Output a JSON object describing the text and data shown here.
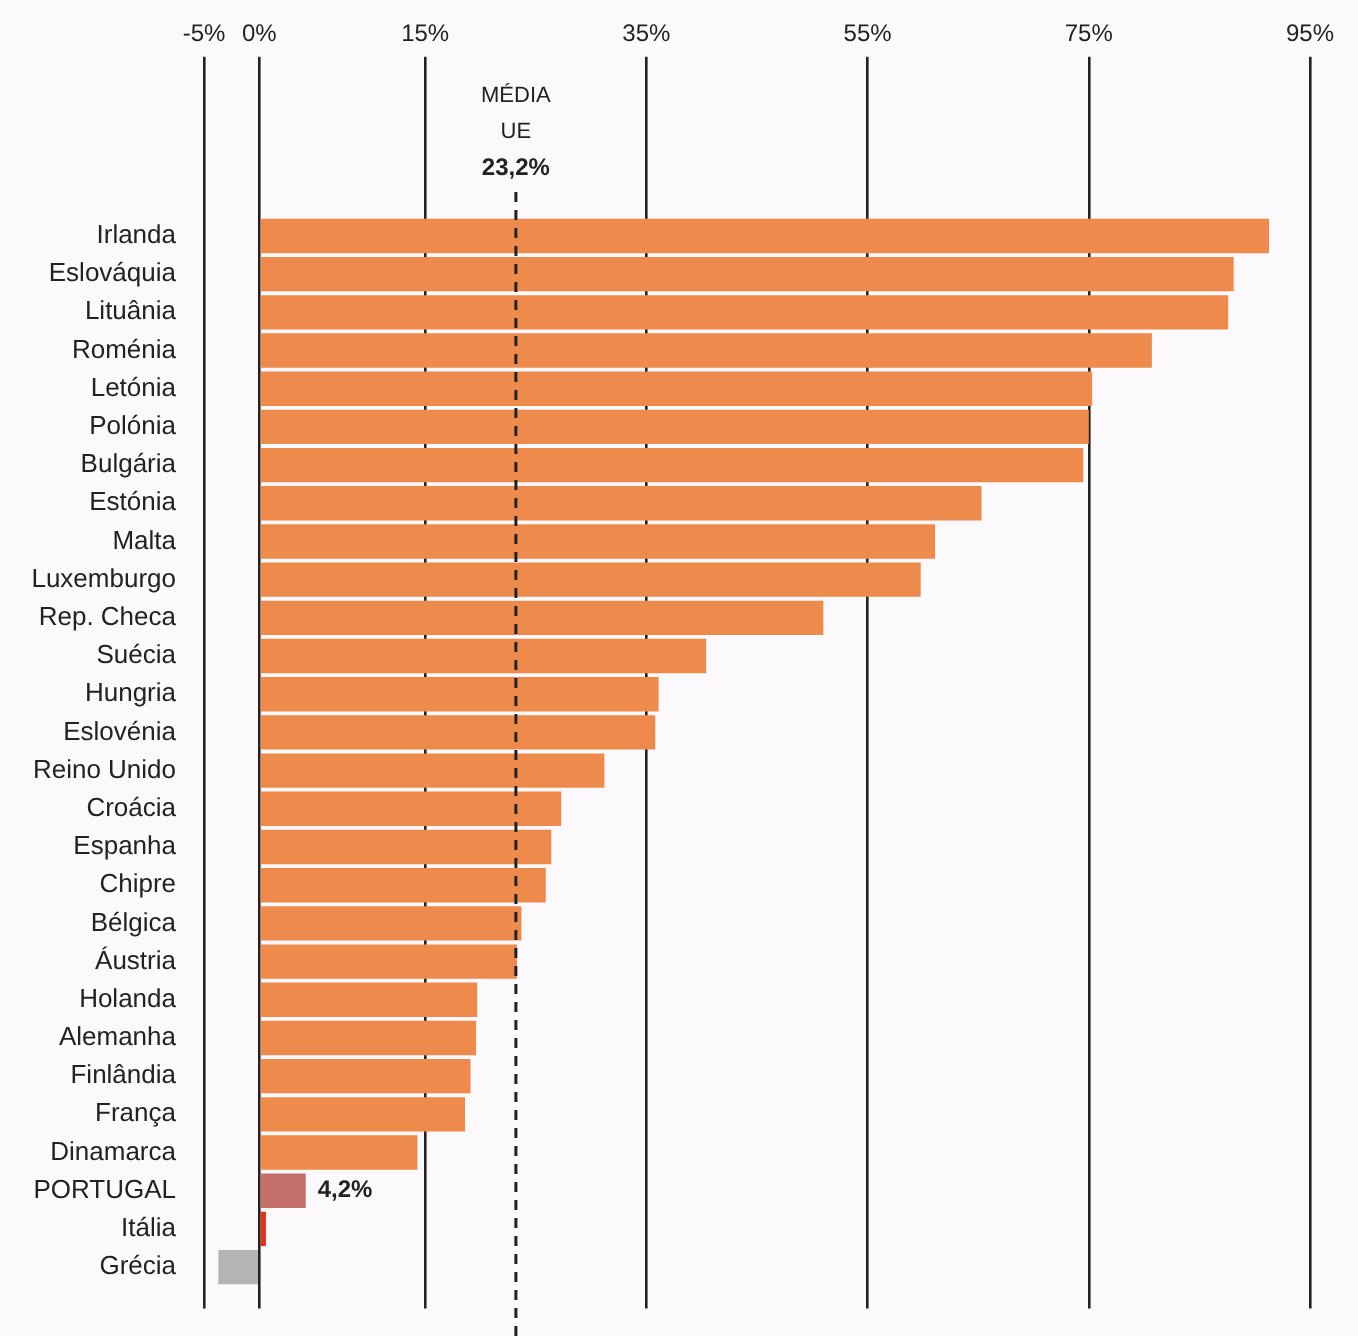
{
  "chart_data": {
    "type": "bar",
    "orientation": "horizontal",
    "categories": [
      "Irlanda",
      "Eslováquia",
      "Lituânia",
      "Roménia",
      "Letónia",
      "Polónia",
      "Bulgária",
      "Estónia",
      "Malta",
      "Luxemburgo",
      "Rep. Checa",
      "Suécia",
      "Hungria",
      "Eslovénia",
      "Reino Unido",
      "Croácia",
      "Espanha",
      "Chipre",
      "Bélgica",
      "Áustria",
      "Holanda",
      "Alemanha",
      "Finlândia",
      "França",
      "Dinamarca",
      "PORTUGAL",
      "Itália",
      "Grécia"
    ],
    "values": [
      91.3,
      88.1,
      87.6,
      80.7,
      75.3,
      75.0,
      74.5,
      65.3,
      61.1,
      59.8,
      51.0,
      40.4,
      36.1,
      35.8,
      31.2,
      27.3,
      26.4,
      25.9,
      23.7,
      23.3,
      19.7,
      19.6,
      19.1,
      18.6,
      14.3,
      4.2,
      0.6,
      -3.7
    ],
    "colors": [
      "#ee8a4c",
      "#ee8a4c",
      "#ee8a4c",
      "#ee8a4c",
      "#ee8a4c",
      "#ee8a4c",
      "#ee8a4c",
      "#ee8a4c",
      "#ee8a4c",
      "#ee8a4c",
      "#ee8a4c",
      "#ee8a4c",
      "#ee8a4c",
      "#ee8a4c",
      "#ee8a4c",
      "#ee8a4c",
      "#ee8a4c",
      "#ee8a4c",
      "#ee8a4c",
      "#ee8a4c",
      "#ee8a4c",
      "#ee8a4c",
      "#ee8a4c",
      "#ee8a4c",
      "#ee8a4c",
      "#c4706a",
      "#e0301e",
      "#b4b4b4"
    ],
    "value_labels": [
      null,
      null,
      null,
      null,
      null,
      null,
      null,
      null,
      null,
      null,
      null,
      null,
      null,
      null,
      null,
      null,
      null,
      null,
      null,
      null,
      null,
      null,
      null,
      null,
      null,
      "4,2%",
      null,
      null
    ],
    "x2lim": [
      -5,
      95
    ],
    "x2ticks": [
      {
        "value": -5,
        "label": "-5%"
      },
      {
        "value": 0,
        "label": "0%"
      },
      {
        "value": 15,
        "label": "15%"
      },
      {
        "value": 35,
        "label": "35%"
      },
      {
        "value": 55,
        "label": "55%"
      },
      {
        "value": 75,
        "label": "75%"
      },
      {
        "value": 95,
        "label": "95%"
      }
    ],
    "ref_lines": [
      {
        "axis": "x",
        "value": 23.2,
        "label": "MÉDIA UE 23,2%",
        "line_style": "dashed",
        "color": "#222222"
      }
    ],
    "grid": "x",
    "legend": false
  }
}
